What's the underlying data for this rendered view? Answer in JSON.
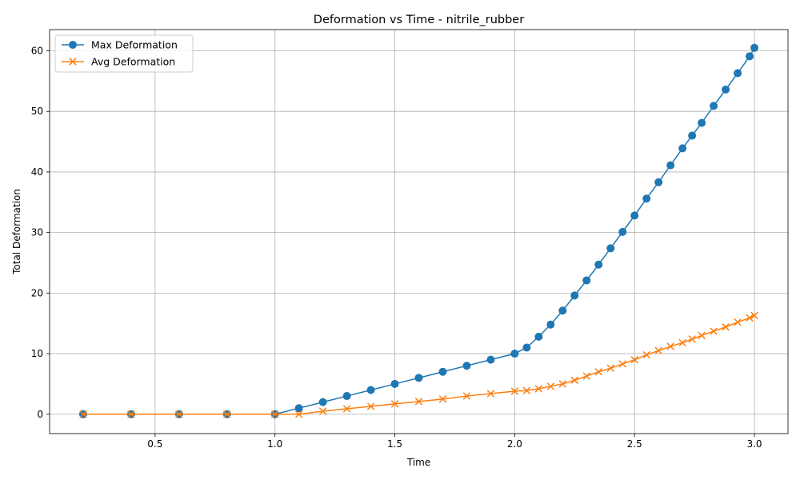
{
  "chart_data": {
    "type": "line",
    "title": "Deformation vs Time - nitrile_rubber",
    "xlabel": "Time",
    "ylabel": "Total Deformation",
    "xlim": [
      0.06,
      3.14
    ],
    "ylim": [
      -3.2,
      63.5
    ],
    "xticks": [
      0.5,
      1.0,
      1.5,
      2.0,
      2.5,
      3.0
    ],
    "xtick_labels": [
      "0.5",
      "1.0",
      "1.5",
      "2.0",
      "2.5",
      "3.0"
    ],
    "yticks": [
      0,
      10,
      20,
      30,
      40,
      50,
      60
    ],
    "ytick_labels": [
      "0",
      "10",
      "20",
      "30",
      "40",
      "50",
      "60"
    ],
    "grid": true,
    "legend_position": "upper-left",
    "series": [
      {
        "name": "Max Deformation",
        "color": "#1f77b4",
        "marker": "circle",
        "x": [
          0.2,
          0.4,
          0.6,
          0.8,
          1.0,
          1.1,
          1.2,
          1.3,
          1.4,
          1.5,
          1.6,
          1.7,
          1.8,
          1.9,
          2.0,
          2.05,
          2.1,
          2.15,
          2.2,
          2.25,
          2.3,
          2.35,
          2.4,
          2.45,
          2.5,
          2.55,
          2.6,
          2.65,
          2.7,
          2.74,
          2.78,
          2.83,
          2.88,
          2.93,
          2.98,
          3.0
        ],
        "y": [
          0,
          0,
          0,
          0,
          0,
          1.0,
          2.0,
          3.0,
          4.0,
          5.0,
          6.0,
          7.0,
          8.0,
          9.0,
          10.0,
          11.0,
          12.8,
          14.8,
          17.1,
          19.6,
          22.1,
          24.7,
          27.4,
          30.1,
          32.8,
          35.6,
          38.3,
          41.1,
          43.9,
          46.0,
          48.1,
          50.9,
          53.6,
          56.3,
          59.1,
          60.5
        ]
      },
      {
        "name": "Avg Deformation",
        "color": "#ff7f0e",
        "marker": "x",
        "x": [
          0.2,
          0.4,
          0.6,
          0.8,
          1.0,
          1.1,
          1.2,
          1.3,
          1.4,
          1.5,
          1.6,
          1.7,
          1.8,
          1.9,
          2.0,
          2.05,
          2.1,
          2.15,
          2.2,
          2.25,
          2.3,
          2.35,
          2.4,
          2.45,
          2.5,
          2.55,
          2.6,
          2.65,
          2.7,
          2.74,
          2.78,
          2.83,
          2.88,
          2.93,
          2.98,
          3.0
        ],
        "y": [
          0,
          0,
          0,
          0,
          0,
          0.0,
          0.5,
          0.9,
          1.3,
          1.7,
          2.1,
          2.5,
          3.0,
          3.4,
          3.8,
          3.9,
          4.2,
          4.6,
          5.0,
          5.6,
          6.3,
          7.0,
          7.6,
          8.3,
          9.0,
          9.8,
          10.5,
          11.2,
          11.8,
          12.4,
          13.0,
          13.7,
          14.4,
          15.2,
          15.9,
          16.3
        ]
      }
    ]
  }
}
